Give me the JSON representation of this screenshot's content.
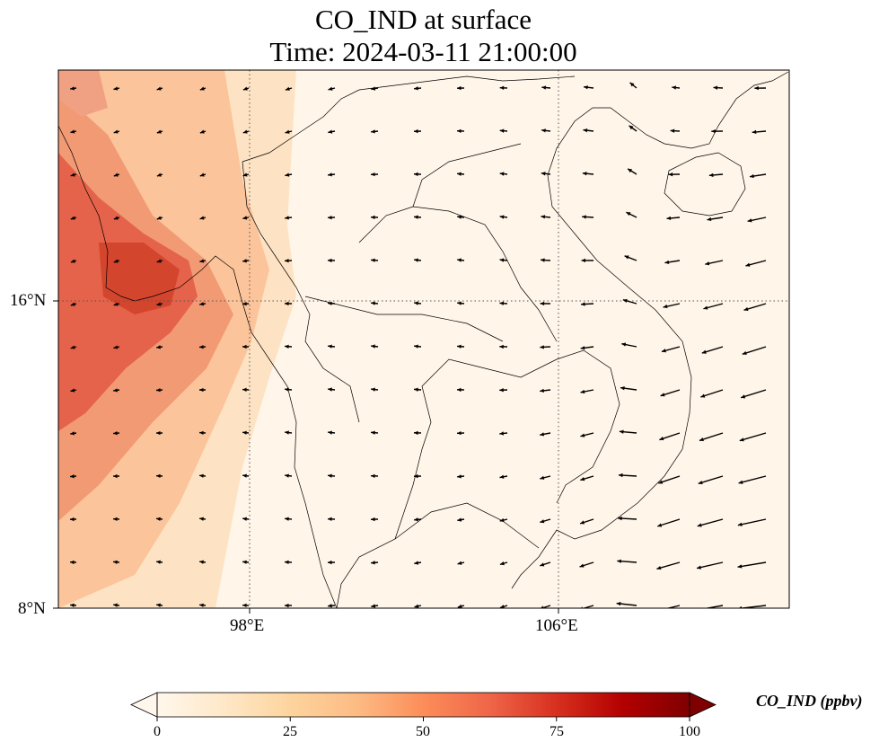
{
  "title": {
    "line1": "CO_IND at surface",
    "line2": "Time: 2024-03-11 21:00:00"
  },
  "axes": {
    "lat_ticks": [
      {
        "value": 16,
        "label": "16°N"
      },
      {
        "value": 8,
        "label": "8°N"
      }
    ],
    "lon_ticks": [
      {
        "value": 98,
        "label": "98°E"
      },
      {
        "value": 106,
        "label": "106°E"
      }
    ],
    "extent": {
      "lon_min": 93,
      "lon_max": 112,
      "lat_min": 8,
      "lat_max": 22
    }
  },
  "colorbar": {
    "label": "CO_IND (ppbv)",
    "colormap": "OrRd",
    "range": [
      0,
      100
    ],
    "extend": "both",
    "ticks": [
      {
        "value": 0,
        "label": "0"
      },
      {
        "value": 25,
        "label": "25"
      },
      {
        "value": 50,
        "label": "50"
      },
      {
        "value": 75,
        "label": "75"
      },
      {
        "value": 100,
        "label": "100"
      }
    ]
  },
  "colors": {
    "background_low": "#fff7ec",
    "mid": "#fdd49e",
    "high": "#ef6548",
    "max": "#7f0000",
    "coastline": "#000000",
    "gridline": "#555555"
  },
  "field_summary": {
    "high_concentration_region": "Bay of Bengal / Myanmar coast (west)",
    "peak_value_approx": 75,
    "typical_inland_value": 3
  }
}
